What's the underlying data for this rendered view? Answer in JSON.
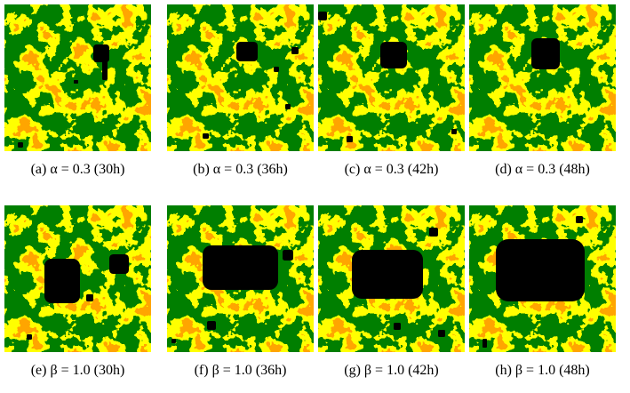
{
  "panels": [
    {
      "caption": "(a) α = 0.3 (30h)"
    },
    {
      "caption": "(b) α = 0.3 (36h)"
    },
    {
      "caption": "(c) α = 0.3 (42h)"
    },
    {
      "caption": "(d) α = 0.3 (48h)"
    },
    {
      "caption": "(e) β = 1.0 (30h)"
    },
    {
      "caption": "(f) β = 1.0 (36h)"
    },
    {
      "caption": "(g) β = 1.0 (42h)"
    },
    {
      "caption": "(h) β = 1.0 (48h)"
    }
  ]
}
